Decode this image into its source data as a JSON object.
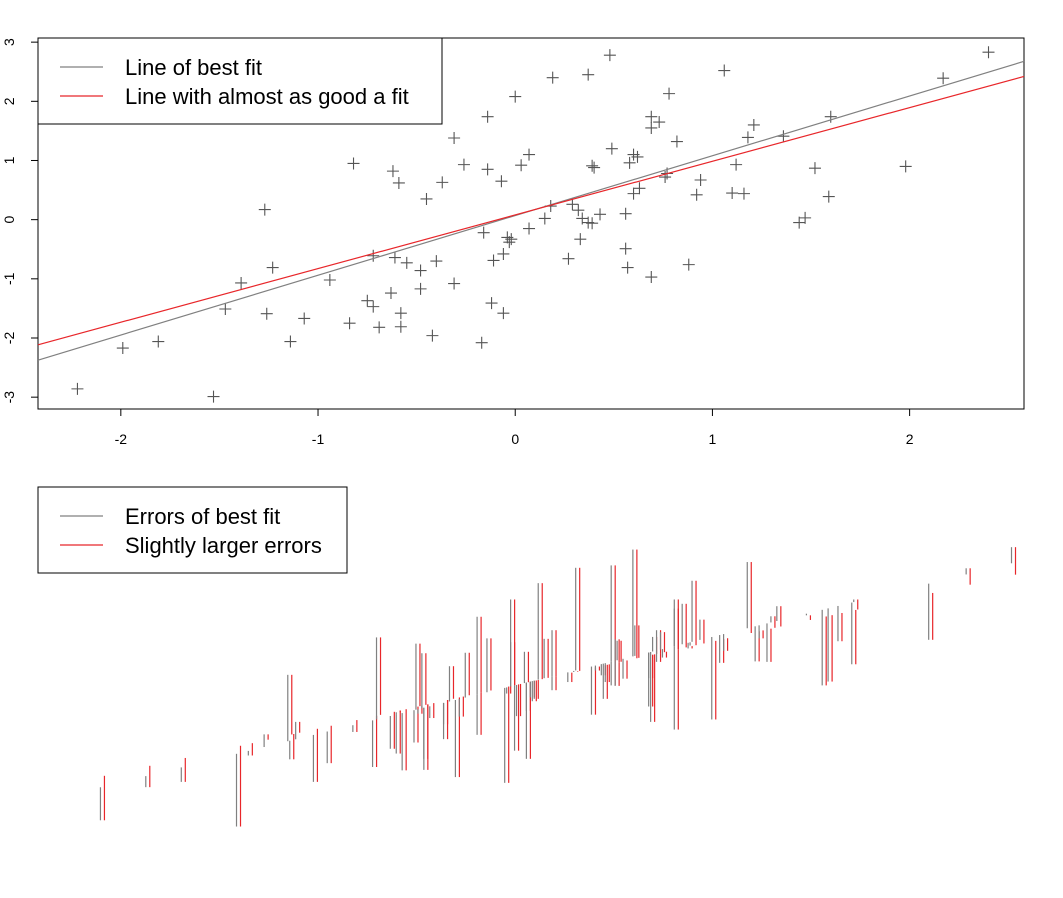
{
  "colors": {
    "best": "#808080",
    "alt": "#e8262a",
    "point": "#555555",
    "axis": "#000000"
  },
  "chart_data": [
    {
      "type": "scatter",
      "title": "",
      "xlabel": "",
      "ylabel": "",
      "xlim": [
        -2.42,
        2.58
      ],
      "ylim": [
        -3.2,
        3.07
      ],
      "x_ticks": [
        -2,
        -1,
        0,
        1,
        2
      ],
      "x_tick_labels": [
        "-2",
        "-1",
        "0",
        "1",
        "2"
      ],
      "y_ticks": [
        -3,
        -2,
        -1,
        0,
        1,
        2,
        3
      ],
      "y_tick_labels": [
        "-3",
        "-2",
        "-1",
        "0",
        "1",
        "2",
        "3"
      ],
      "legend": {
        "position": "top-left",
        "entries": [
          "Line of best fit",
          "Line with almost as good a fit"
        ]
      },
      "lines": [
        {
          "name": "Line of best fit",
          "intercept": 0.07,
          "slope": 1.01
        },
        {
          "name": "Line with almost as good a fit",
          "intercept": 0.08,
          "slope": 0.907
        }
      ],
      "points": [
        [
          -2.22,
          -2.86
        ],
        [
          -1.99,
          -2.17
        ],
        [
          -1.81,
          -2.06
        ],
        [
          -1.53,
          -2.99
        ],
        [
          -1.47,
          -1.51
        ],
        [
          -1.39,
          -1.07
        ],
        [
          -1.27,
          0.17
        ],
        [
          -1.26,
          -1.59
        ],
        [
          -1.23,
          -0.81
        ],
        [
          -1.14,
          -2.06
        ],
        [
          -1.07,
          -1.67
        ],
        [
          -0.94,
          -1.02
        ],
        [
          -0.84,
          -1.75
        ],
        [
          -0.82,
          0.95
        ],
        [
          -0.75,
          -1.37
        ],
        [
          -0.72,
          -1.47
        ],
        [
          -0.72,
          -0.61
        ],
        [
          -0.69,
          -1.82
        ],
        [
          -0.63,
          -1.24
        ],
        [
          -0.62,
          0.82
        ],
        [
          -0.61,
          -0.64
        ],
        [
          -0.59,
          0.62
        ],
        [
          -0.58,
          -1.58
        ],
        [
          -0.58,
          -1.81
        ],
        [
          -0.55,
          -0.73
        ],
        [
          -0.48,
          -0.86
        ],
        [
          -0.48,
          -1.17
        ],
        [
          -0.45,
          0.35
        ],
        [
          -0.42,
          -1.96
        ],
        [
          -0.4,
          -0.7
        ],
        [
          -0.37,
          0.63
        ],
        [
          -0.31,
          -1.08
        ],
        [
          -0.31,
          1.38
        ],
        [
          -0.26,
          0.93
        ],
        [
          -0.17,
          -2.08
        ],
        [
          -0.16,
          -0.22
        ],
        [
          -0.14,
          1.74
        ],
        [
          -0.14,
          0.85
        ],
        [
          -0.12,
          -1.41
        ],
        [
          -0.11,
          -0.69
        ],
        [
          -0.07,
          0.65
        ],
        [
          -0.06,
          -0.58
        ],
        [
          -0.06,
          -1.58
        ],
        [
          -0.04,
          -0.3
        ],
        [
          -0.03,
          -0.38
        ],
        [
          -0.02,
          -0.33
        ],
        [
          0.0,
          2.08
        ],
        [
          0.03,
          0.92
        ],
        [
          0.07,
          1.1
        ],
        [
          0.07,
          -0.15
        ],
        [
          0.15,
          0.02
        ],
        [
          0.18,
          0.23
        ],
        [
          0.19,
          2.4
        ],
        [
          0.27,
          -0.66
        ],
        [
          0.29,
          0.26
        ],
        [
          0.32,
          0.16
        ],
        [
          0.33,
          -0.33
        ],
        [
          0.34,
          0.02
        ],
        [
          0.37,
          -0.05
        ],
        [
          0.37,
          2.45
        ],
        [
          0.39,
          -0.06
        ],
        [
          0.39,
          0.91
        ],
        [
          0.4,
          0.88
        ],
        [
          0.43,
          0.09
        ],
        [
          0.48,
          2.78
        ],
        [
          0.49,
          1.2
        ],
        [
          0.56,
          -0.49
        ],
        [
          0.56,
          0.1
        ],
        [
          0.57,
          -0.81
        ],
        [
          0.58,
          0.96
        ],
        [
          0.6,
          1.1
        ],
        [
          0.6,
          0.44
        ],
        [
          0.62,
          1.06
        ],
        [
          0.63,
          0.53
        ],
        [
          0.69,
          1.74
        ],
        [
          0.69,
          1.55
        ],
        [
          0.69,
          -0.97
        ],
        [
          0.73,
          1.65
        ],
        [
          0.76,
          0.72
        ],
        [
          0.77,
          0.78
        ],
        [
          0.78,
          2.13
        ],
        [
          0.82,
          1.32
        ],
        [
          0.88,
          -0.76
        ],
        [
          0.92,
          0.42
        ],
        [
          0.94,
          0.67
        ],
        [
          1.06,
          2.52
        ],
        [
          1.1,
          0.45
        ],
        [
          1.12,
          0.93
        ],
        [
          1.16,
          0.44
        ],
        [
          1.18,
          1.39
        ],
        [
          1.21,
          1.6
        ],
        [
          1.36,
          1.41
        ],
        [
          1.44,
          -0.05
        ],
        [
          1.47,
          0.03
        ],
        [
          1.52,
          0.87
        ],
        [
          1.59,
          0.39
        ],
        [
          1.6,
          1.74
        ],
        [
          1.98,
          0.9
        ],
        [
          2.17,
          2.39
        ],
        [
          2.4,
          2.83
        ]
      ]
    },
    {
      "type": "error-segments",
      "title": "",
      "legend": {
        "position": "top-left",
        "entries": [
          "Errors of best fit",
          "Slightly larger errors"
        ]
      },
      "note_axes": "none"
    }
  ]
}
